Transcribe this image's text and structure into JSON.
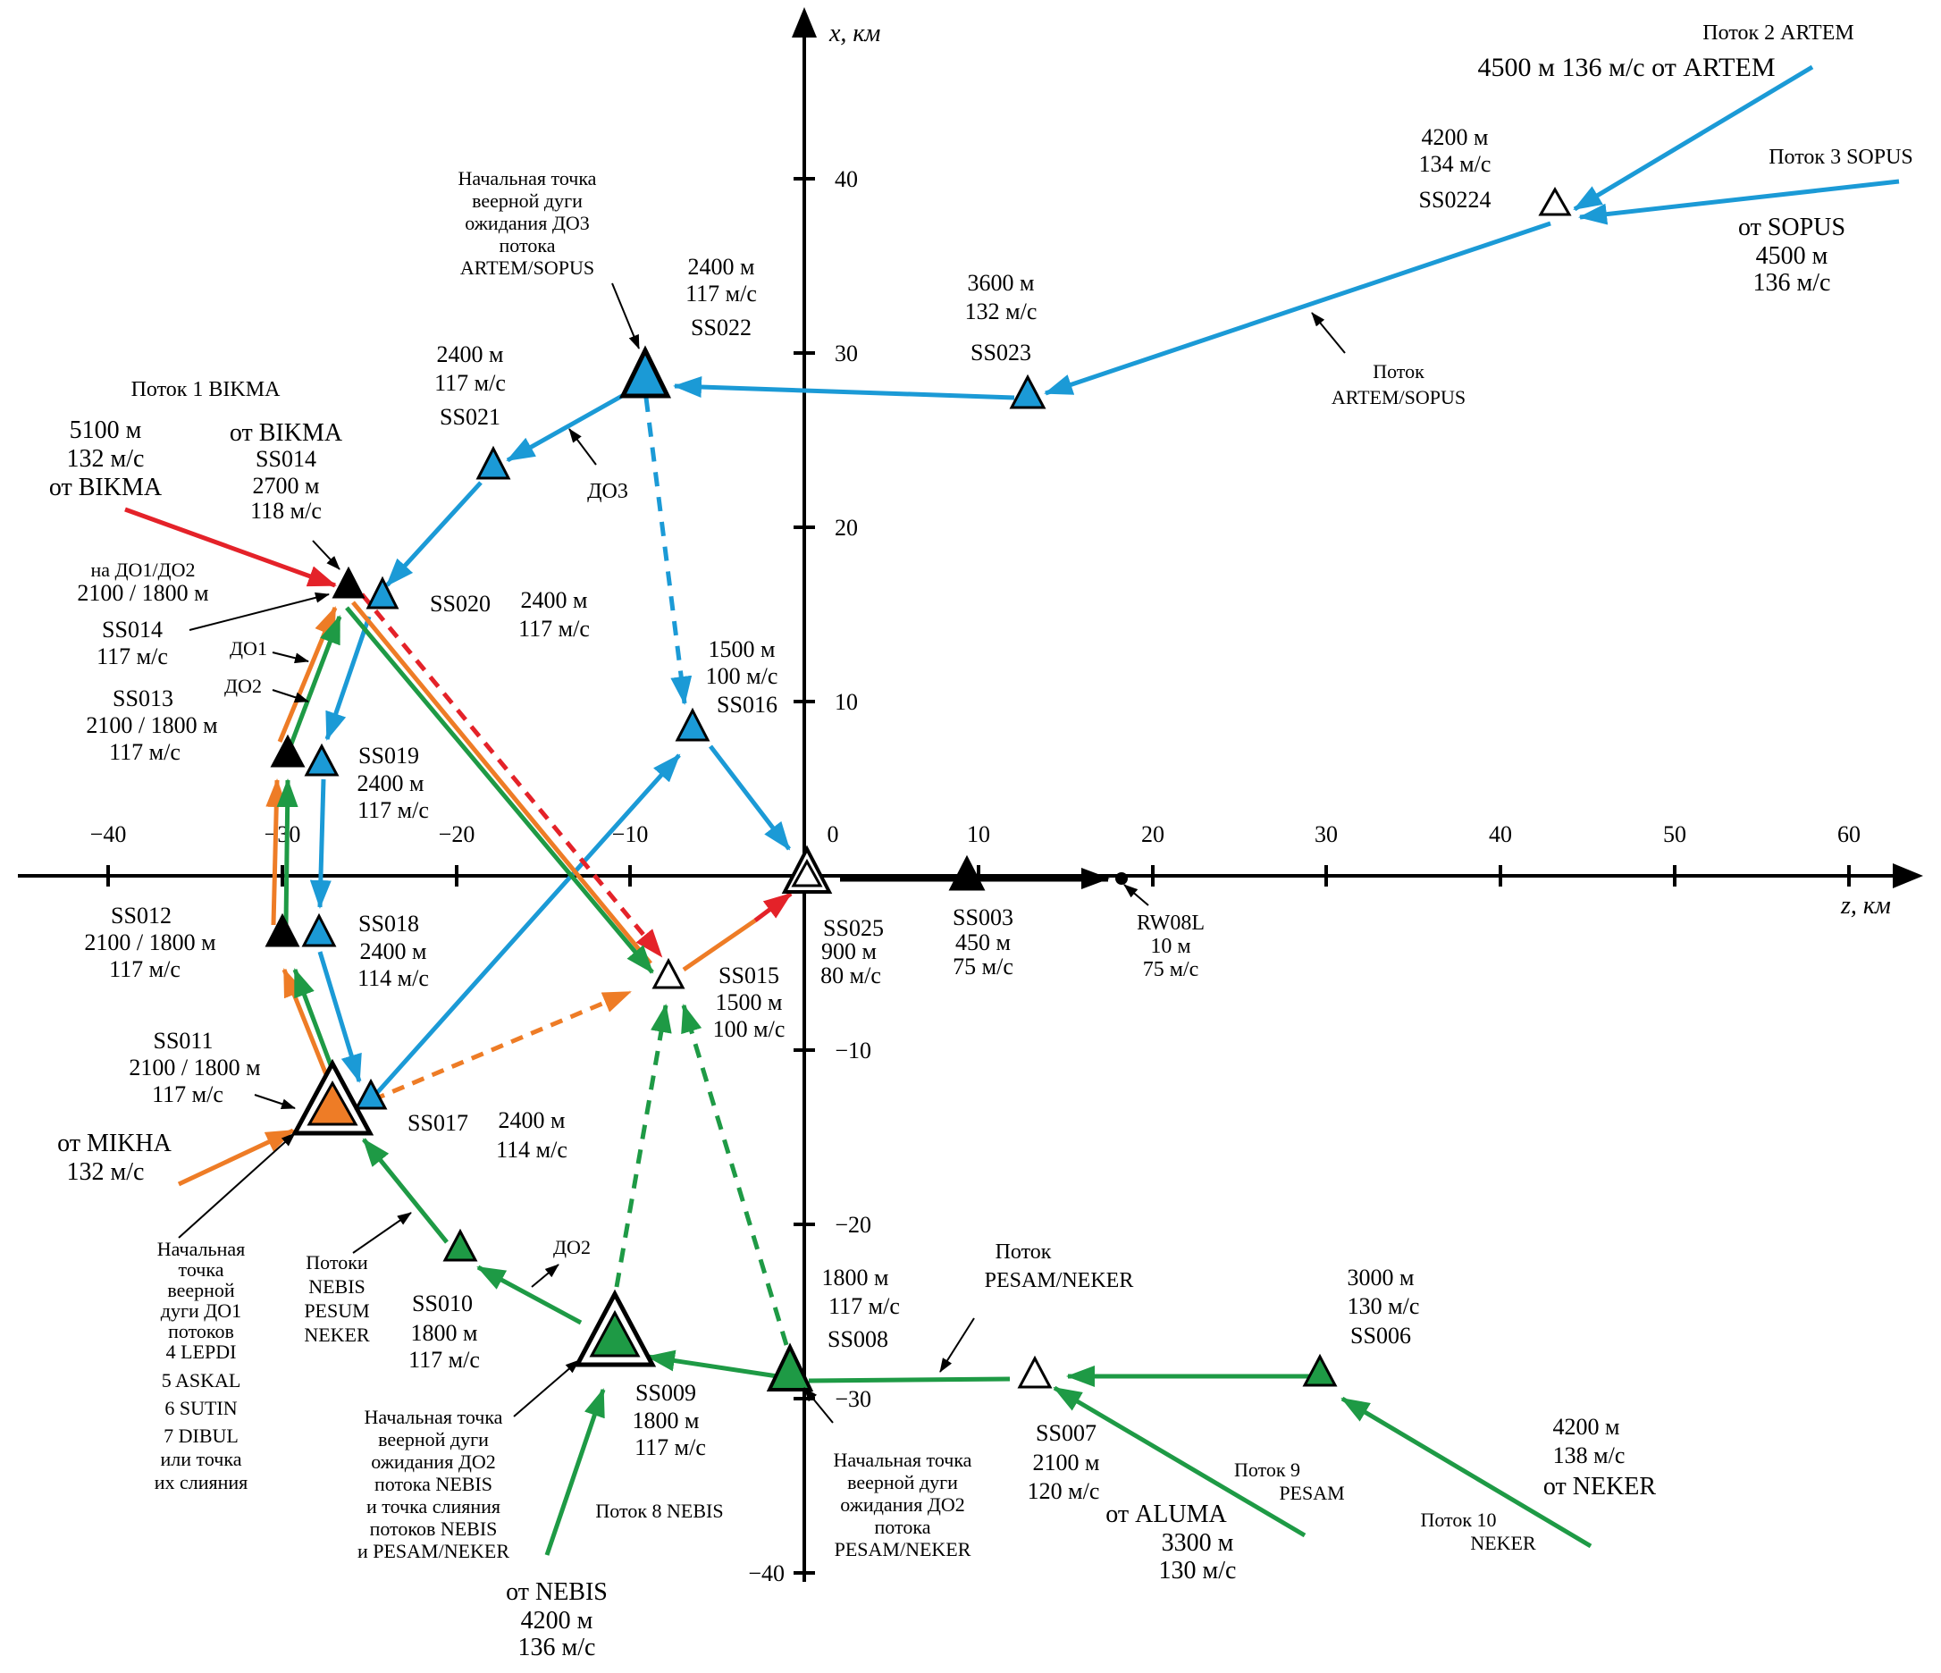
{
  "colors": {
    "blue": "#1b9ad6",
    "green": "#1e9a45",
    "orange": "#ee7c26",
    "red": "#e42229",
    "black": "#000000"
  },
  "axes": {
    "x_axis_label": "z, км",
    "y_axis_label": "x, км",
    "z_ticks": [
      "−40",
      "−30",
      "−20",
      "−10",
      "0",
      "10",
      "20",
      "30",
      "40",
      "50",
      "60"
    ],
    "x_ticks": [
      "40",
      "30",
      "20",
      "10",
      "−10",
      "−20",
      "−30",
      "−40"
    ]
  },
  "labels": {
    "artem_flow_name": "Поток 2 ARTEM",
    "artem_entry": "4500 м 136 м/с от ARTEM",
    "sopus_flow_name": "Поток 3 SOPUS",
    "sopus_entry": [
      "от SOPUS",
      "4500 м",
      "136 м/с"
    ],
    "ss0224": [
      "4200 м",
      "134 м/с",
      "SS0224"
    ],
    "ss023": [
      "3600 м",
      "132 м/с",
      "SS023"
    ],
    "artem_sopus_stream": [
      "Поток",
      "ARTEM/SOPUS"
    ],
    "do3_fan_start": [
      "Начальная точка",
      "веерной дуги",
      "ожидания ДО3",
      "потока",
      "ARTEM/SOPUS"
    ],
    "ss022": [
      "2400 м",
      "117 м/с",
      "SS022"
    ],
    "ss021": [
      "2400 м",
      "117 м/с",
      "SS021"
    ],
    "do3": "ДО3",
    "bikma_flow_name": "Поток 1  BIKMA",
    "bikma_entry": [
      "5100 м",
      "132 м/с",
      "от BIKMA"
    ],
    "ss014_top": [
      "от BIKMA",
      "SS014",
      "2700 м",
      "118 м/с"
    ],
    "ss014_side": [
      "на ДО1/ДО2",
      "2100 / 1800 м",
      "SS014",
      "117 м/с"
    ],
    "ss020": [
      "SS020",
      "2400 м",
      "117 м/с"
    ],
    "do1": "ДО1",
    "do2": "ДО2",
    "ss013": [
      "SS013",
      "2100 / 1800 м",
      "117 м/с"
    ],
    "ss019": [
      "SS019",
      "2400 м",
      "117 м/с"
    ],
    "ss016": [
      "1500 м",
      "100 м/с",
      "SS016"
    ],
    "ss012": [
      "SS012",
      "2100 / 1800 м",
      "117 м/с"
    ],
    "ss018": [
      "SS018",
      "2400 м",
      "114 м/с"
    ],
    "ss025": [
      "SS025",
      "900 м",
      "80 м/с"
    ],
    "ss003": [
      "SS003",
      "450 м",
      "75 м/с"
    ],
    "rw08l": [
      "RW08L",
      "10 м",
      "75 м/с"
    ],
    "ss015": [
      "SS015",
      "1500 м",
      "100 м/с"
    ],
    "ss011": [
      "SS011",
      "2100 / 1800 м",
      "117 м/с"
    ],
    "ss017": [
      "SS017",
      "2400 м",
      "114 м/с"
    ],
    "mikha_entry": [
      "от MIKHA",
      "132 м/с"
    ],
    "do1_fan_start": [
      "Начальная",
      "точка",
      "веерной",
      "дуги ДО1",
      "потоков",
      "4 LEPDI",
      "5 ASKAL",
      "6 SUTIN",
      "7 DIBUL",
      "или точка",
      "их слияния"
    ],
    "streams_nebis": [
      "Потоки",
      "NEBIS",
      "PESUM",
      "NEKER"
    ],
    "do2_low": "ДО2",
    "ss010": [
      "SS010",
      "1800 м",
      "117 м/с"
    ],
    "do2_fan_start_nebis": [
      "Начальная точка",
      "веерной дуги",
      "ожидания ДО2",
      "потока NEBIS",
      "и точка слияния",
      "потоков NEBIS",
      "и PESAM/NEKER"
    ],
    "ss009": [
      "SS009",
      "1800 м",
      "117 м/с"
    ],
    "nebis_flow_name": "Поток 8 NEBIS",
    "nebis_entry": [
      "от NEBIS",
      "4200 м",
      "136 м/с"
    ],
    "ss008": [
      "1800 м",
      "117 м/с",
      "SS008"
    ],
    "do2_fan_start_pesam": [
      "Начальная точка",
      "веерной дуги",
      "ожидания ДО2",
      "потока",
      "PESAM/NEKER"
    ],
    "pesam_neker_stream": [
      "Поток",
      "PESAM/NEKER"
    ],
    "ss007": [
      "SS007",
      "2100 м",
      "120 м/с"
    ],
    "pesam_flow_name": [
      "Поток 9",
      "PESAM"
    ],
    "aluma_entry": [
      "от ALUMA",
      "3300 м",
      "130 м/с"
    ],
    "ss006": [
      "3000 м",
      "130 м/с",
      "SS006"
    ],
    "neker_entry": [
      "4200 м",
      "138 м/с",
      "от NEKER"
    ],
    "neker_flow_name": [
      "Поток 10",
      "NEKER"
    ]
  }
}
